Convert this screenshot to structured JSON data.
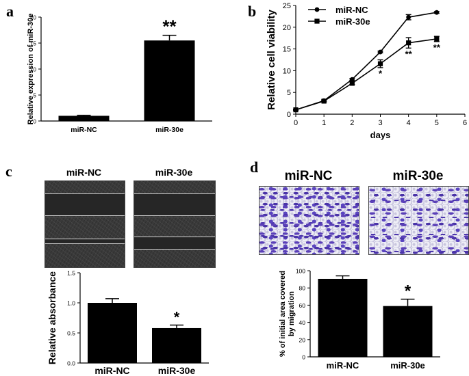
{
  "panels": {
    "a": {
      "label": "a"
    },
    "b": {
      "label": "b"
    },
    "c": {
      "label": "c",
      "image_titles": [
        "miR-NC",
        "miR-30e"
      ]
    },
    "d": {
      "label": "d",
      "image_titles": [
        "miR-NC",
        "miR-30e"
      ]
    }
  },
  "colors": {
    "bar": "#000000",
    "line": "#000000",
    "stain": "#5a44c0"
  },
  "chart_data": [
    {
      "id": "a",
      "type": "bar",
      "categories": [
        "miR-NC",
        "miR-30e"
      ],
      "values": [
        1.0,
        15.5
      ],
      "errors": [
        0.1,
        1.0
      ],
      "ylim": [
        0,
        20
      ],
      "yticks": [
        0,
        5,
        10,
        15,
        20
      ],
      "ylabel": "Relative expression of miR-30e",
      "xlabel": "",
      "annotations": [
        "",
        "**"
      ]
    },
    {
      "id": "b",
      "type": "line",
      "x": [
        0,
        1,
        2,
        3,
        4,
        5
      ],
      "series": [
        {
          "name": "miR-NC",
          "marker": "circle",
          "values": [
            1,
            3.1,
            8.0,
            14.3,
            22.3,
            23.4
          ],
          "errors": [
            0.1,
            0.2,
            0.2,
            0.2,
            0.6,
            0.2
          ]
        },
        {
          "name": "miR-30e",
          "marker": "square",
          "values": [
            1,
            3.0,
            7.1,
            11.6,
            16.4,
            17.3
          ],
          "errors": [
            0.1,
            0.2,
            0.3,
            0.9,
            1.2,
            0.6
          ]
        }
      ],
      "xlim": [
        0,
        6
      ],
      "ylim": [
        0,
        25
      ],
      "xticks": [
        0,
        1,
        2,
        3,
        4,
        5,
        6
      ],
      "yticks": [
        0,
        5,
        10,
        15,
        20,
        25
      ],
      "xlabel": "days",
      "ylabel": "Relative cell viability",
      "legend": "top-left",
      "annotations": [
        {
          "x": 3,
          "text": "*"
        },
        {
          "x": 4,
          "text": "**"
        },
        {
          "x": 5,
          "text": "**"
        }
      ]
    },
    {
      "id": "c",
      "type": "bar",
      "categories": [
        "miR-NC",
        "miR-30e"
      ],
      "values": [
        1.0,
        0.58
      ],
      "errors": [
        0.07,
        0.05
      ],
      "ylim": [
        0,
        1.5
      ],
      "yticks": [
        "0.0",
        "0.5",
        "1.0",
        "1.5"
      ],
      "ylabel": "Relative absorbance",
      "xlabel": "",
      "annotations": [
        "",
        "*"
      ]
    },
    {
      "id": "d",
      "type": "bar",
      "categories": [
        "miR-NC",
        "miR-30e"
      ],
      "values": [
        90.5,
        59
      ],
      "errors": [
        3.5,
        8
      ],
      "ylim": [
        0,
        100
      ],
      "yticks": [
        0,
        20,
        40,
        60,
        80,
        100
      ],
      "ylabel": [
        "% of initial area covered",
        "by migration"
      ],
      "xlabel": "",
      "annotations": [
        "",
        "*"
      ]
    }
  ]
}
